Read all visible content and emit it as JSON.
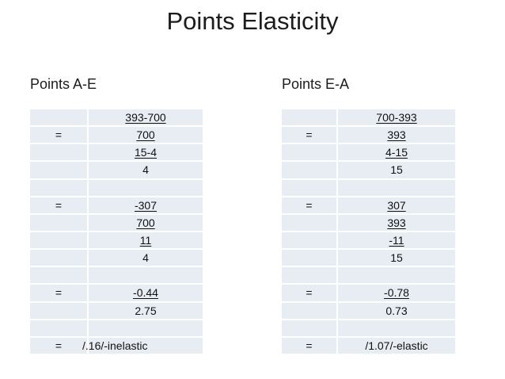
{
  "title": "Points Elasticity",
  "colors": {
    "cell_fill": "#e8ecf3",
    "row_separator": "#ffffff",
    "text": "#1a1a1a",
    "background": "#ffffff"
  },
  "left_table": {
    "heading": "Points A-E",
    "rows": [
      {
        "eq": "",
        "value": "393-700",
        "underline": true,
        "align": "center"
      },
      {
        "eq": "=",
        "value": "700",
        "underline": true,
        "align": "center"
      },
      {
        "eq": "",
        "value": "15-4",
        "underline": true,
        "align": "center"
      },
      {
        "eq": "",
        "value": "4",
        "underline": false,
        "align": "center"
      },
      {
        "eq": "",
        "value": "",
        "underline": false,
        "align": "center"
      },
      {
        "eq": "=",
        "value": "-307",
        "underline": true,
        "align": "center"
      },
      {
        "eq": "",
        "value": "700",
        "underline": true,
        "align": "center"
      },
      {
        "eq": "",
        "value": "11",
        "underline": true,
        "align": "center"
      },
      {
        "eq": "",
        "value": "4",
        "underline": false,
        "align": "center"
      },
      {
        "eq": "",
        "value": "",
        "underline": false,
        "align": "center"
      },
      {
        "eq": "=",
        "value": "-0.44",
        "underline": true,
        "align": "center"
      },
      {
        "eq": "",
        "value": "2.75",
        "underline": false,
        "align": "center"
      },
      {
        "eq": "",
        "value": "",
        "underline": false,
        "align": "center"
      },
      {
        "eq": "=",
        "value": "/.16/-inelastic",
        "underline": false,
        "align": "left"
      }
    ]
  },
  "right_table": {
    "heading": "Points E-A",
    "rows": [
      {
        "eq": "",
        "value": "700-393",
        "underline": true,
        "align": "center"
      },
      {
        "eq": "=",
        "value": "393",
        "underline": true,
        "align": "center"
      },
      {
        "eq": "",
        "value": "4-15",
        "underline": true,
        "align": "center"
      },
      {
        "eq": "",
        "value": "15",
        "underline": false,
        "align": "center"
      },
      {
        "eq": "",
        "value": "",
        "underline": false,
        "align": "center"
      },
      {
        "eq": "=",
        "value": "307",
        "underline": true,
        "align": "center"
      },
      {
        "eq": "",
        "value": "393",
        "underline": true,
        "align": "center"
      },
      {
        "eq": "",
        "value": "-11",
        "underline": true,
        "align": "center"
      },
      {
        "eq": "",
        "value": "15",
        "underline": false,
        "align": "center"
      },
      {
        "eq": "",
        "value": "",
        "underline": false,
        "align": "center"
      },
      {
        "eq": "=",
        "value": "-0.78",
        "underline": true,
        "align": "center"
      },
      {
        "eq": "",
        "value": "0.73",
        "underline": false,
        "align": "center"
      },
      {
        "eq": "",
        "value": "",
        "underline": false,
        "align": "center"
      },
      {
        "eq": "=",
        "value": "/1.07/-elastic",
        "underline": false,
        "align": "center"
      }
    ]
  }
}
